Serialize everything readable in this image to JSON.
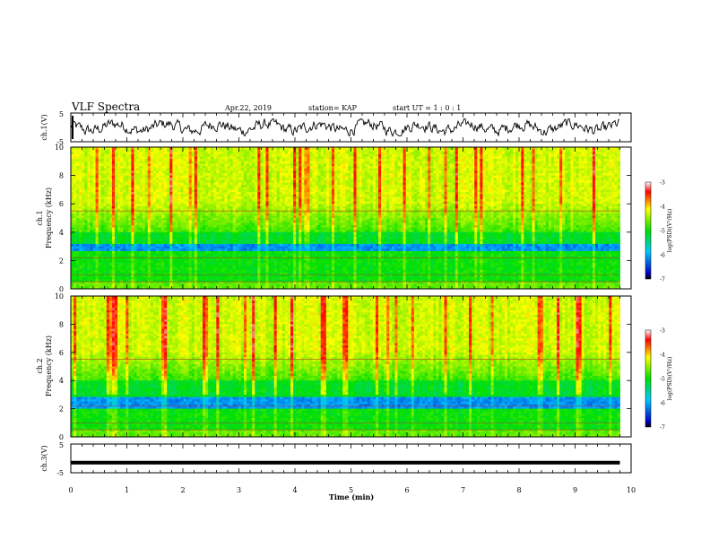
{
  "header": {
    "title": "VLF Spectra",
    "date": "Apr.22, 2019",
    "station": "station= KAP",
    "start": "start UT = 1 : 0 : 1"
  },
  "chart_data": [
    {
      "type": "line",
      "panel": "ch1-waveform",
      "ylabel": "ch.1(V)",
      "ylim": [
        -5,
        5
      ],
      "yticks": [
        "5",
        "-5"
      ],
      "xlim": [
        0,
        10
      ],
      "x_data_end": 9.8,
      "description": "noisy waveform oscillating roughly between -2 and +2 V"
    },
    {
      "type": "heatmap",
      "panel": "ch1-spectrogram",
      "ylabel": "ch.1 Frequency (kHz)",
      "ylim": [
        0,
        10
      ],
      "yticks": [
        "0",
        "2",
        "4",
        "6",
        "8",
        "10"
      ],
      "xlim": [
        0,
        10
      ],
      "x_data_end": 9.8,
      "colorbar": {
        "label": "log(PSD)(V²/Hz)",
        "ticks": [
          "-3",
          "-4",
          "-5",
          "-6",
          "-7"
        ],
        "range": [
          -7,
          -3
        ]
      },
      "bands_khz": {
        "low_power_band": [
          2.6,
          3.2
        ],
        "high_power_top": [
          6,
          10
        ]
      }
    },
    {
      "type": "heatmap",
      "panel": "ch2-spectrogram",
      "ylabel": "ch.2 Frequency (kHz)",
      "ylim": [
        0,
        10
      ],
      "yticks": [
        "0",
        "2",
        "4",
        "6",
        "8",
        "10"
      ],
      "xlim": [
        0,
        10
      ],
      "x_data_end": 9.8,
      "colorbar": {
        "label": "log(PSD)(V²/Hz)",
        "ticks": [
          "-3",
          "-4",
          "-5",
          "-6",
          "-7"
        ],
        "range": [
          -7,
          -3
        ]
      },
      "bands_khz": {
        "low_power_band": [
          2.0,
          2.8
        ],
        "high_power_top": [
          6,
          10
        ]
      }
    },
    {
      "type": "line",
      "panel": "ch3-waveform",
      "ylabel": "ch.3(V)",
      "ylim": [
        -5,
        5
      ],
      "yticks": [
        "5",
        "-5"
      ],
      "xlim": [
        0,
        10
      ],
      "x_data_end": 9.8,
      "constant_value": -1.5,
      "xlabel": "Time (min)",
      "xticks": [
        "0",
        "1",
        "2",
        "3",
        "4",
        "5",
        "6",
        "7",
        "8",
        "9",
        "10"
      ]
    }
  ]
}
